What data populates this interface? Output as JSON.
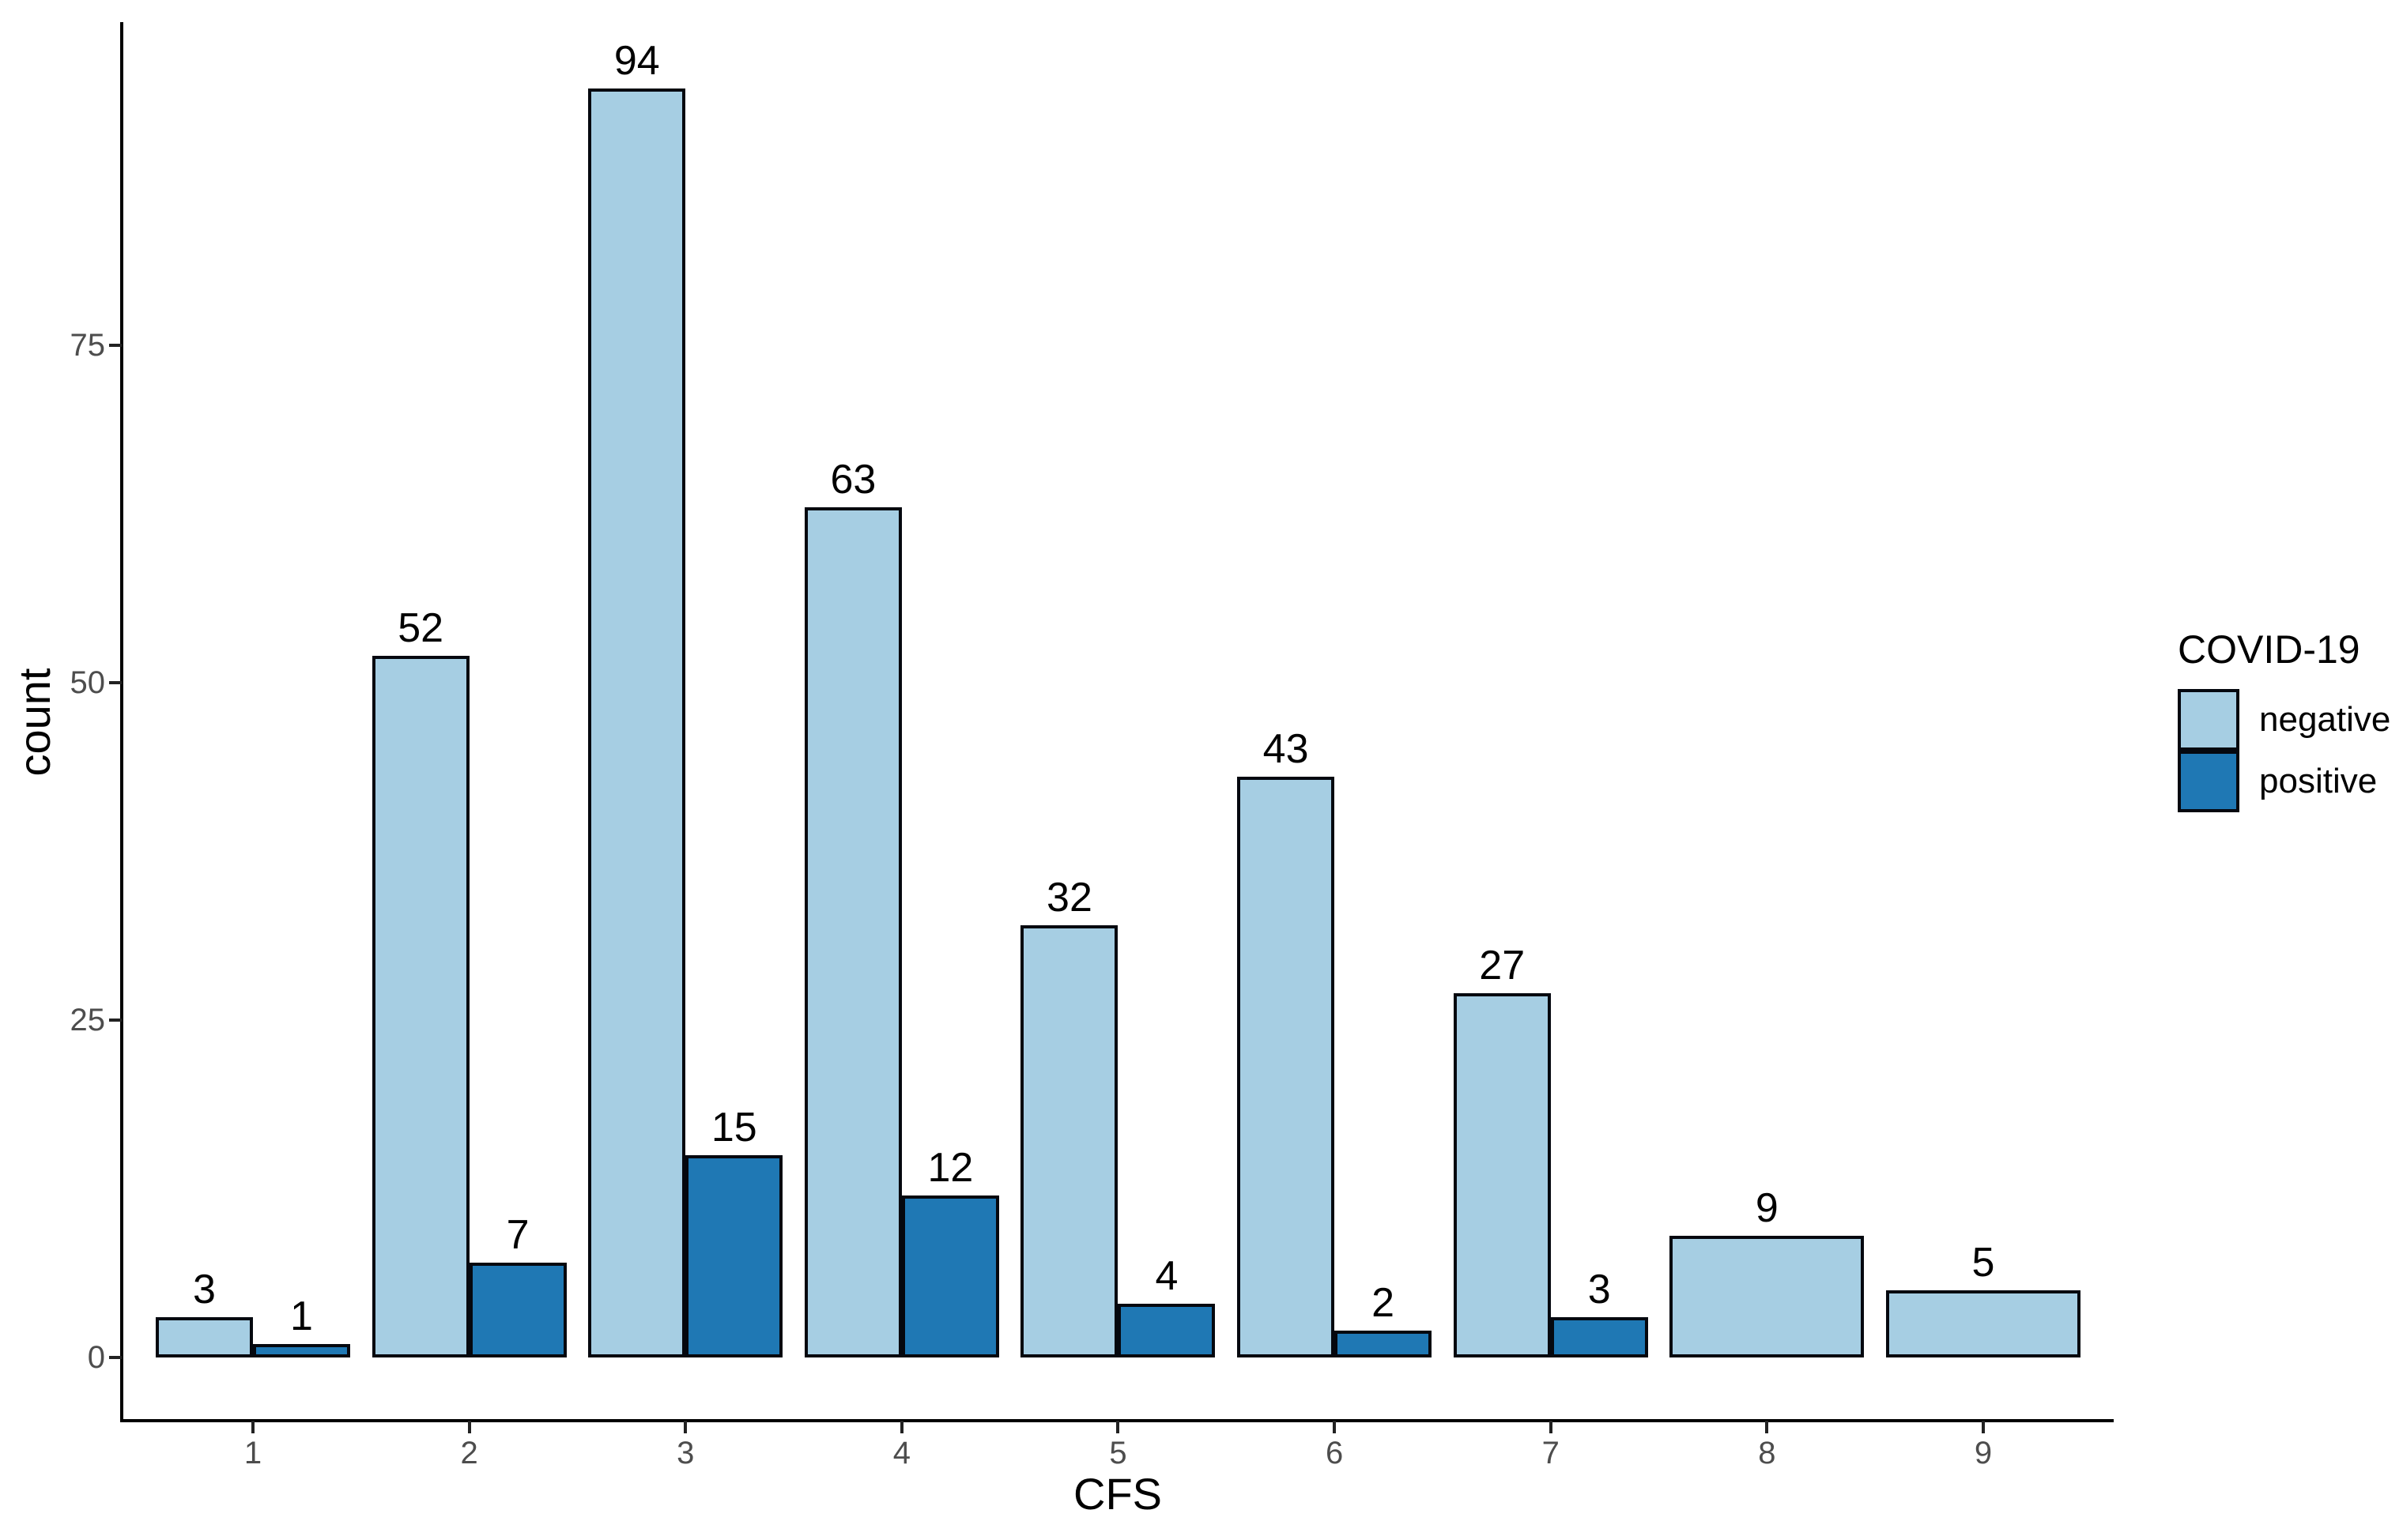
{
  "chart_data": {
    "type": "bar",
    "title": "",
    "xlabel": "CFS",
    "ylabel": "count",
    "categories": [
      "1",
      "2",
      "3",
      "4",
      "5",
      "6",
      "7",
      "8",
      "9"
    ],
    "series": [
      {
        "name": "negative",
        "color": "#A6CEE3",
        "values": [
          3,
          52,
          94,
          63,
          32,
          43,
          27,
          9,
          5
        ]
      },
      {
        "name": "positive",
        "color": "#1F78B4",
        "values": [
          1,
          7,
          15,
          12,
          4,
          2,
          3,
          null,
          null
        ]
      }
    ],
    "y_ticks": [
      "0",
      "25",
      "50",
      "75"
    ],
    "ylim": [
      0,
      99
    ],
    "grid": false,
    "bar_value_labels": true,
    "legend": {
      "title": "COVID-19",
      "position": "right"
    }
  },
  "colors": {
    "negative_fill": "#A6CEE3",
    "positive_fill": "#1F78B4",
    "bar_border": "#05080f",
    "axis_line": "#000000",
    "tick_label": "#4D4D4D",
    "text": "#000000",
    "background": "#FFFFFF"
  }
}
